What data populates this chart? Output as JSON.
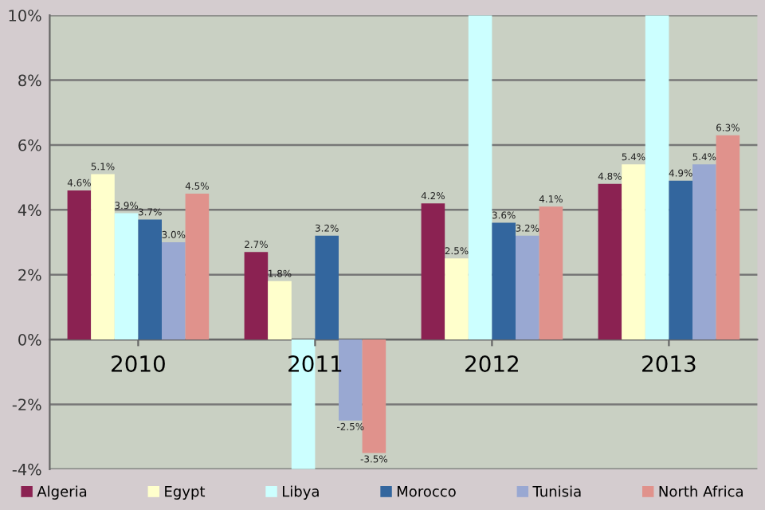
{
  "chart_data": {
    "type": "bar",
    "categories": [
      "2010",
      "2011",
      "2012",
      "2013"
    ],
    "series": [
      {
        "name": "Algeria",
        "color": "#8b2252",
        "values": [
          4.6,
          2.7,
          4.2,
          4.8
        ],
        "value_labels": [
          "4.6%",
          "2.7%",
          "4.2%",
          "4.8%"
        ]
      },
      {
        "name": "Egypt",
        "color": "#ffffcc",
        "values": [
          5.1,
          1.8,
          2.5,
          5.4
        ],
        "value_labels": [
          "5.1%",
          "1.8%",
          "2.5%",
          "5.4%"
        ]
      },
      {
        "name": "Libya",
        "color": "#ccffff",
        "values": [
          3.9,
          -4,
          10,
          10
        ],
        "value_labels": [
          "3.9%",
          null,
          null,
          null
        ]
      },
      {
        "name": "Morocco",
        "color": "#33669e",
        "values": [
          3.7,
          3.2,
          3.6,
          4.9
        ],
        "value_labels": [
          "3.7%",
          "3.2%",
          "3.6%",
          "4.9%"
        ]
      },
      {
        "name": "Tunisia",
        "color": "#99a8d2",
        "values": [
          3.0,
          -2.5,
          3.2,
          5.4
        ],
        "value_labels": [
          "3.0%",
          "-2.5%",
          "3.2%",
          "5.4%"
        ]
      },
      {
        "name": "North Africa",
        "color": "#e0928c",
        "values": [
          4.5,
          -3.5,
          4.1,
          6.3
        ],
        "value_labels": [
          "4.5%",
          "-3.5%",
          "4.1%",
          "6.3%"
        ]
      }
    ],
    "ylim": [
      -4,
      10
    ],
    "yticks": [
      {
        "value": -4,
        "label": "-4%"
      },
      {
        "value": -2,
        "label": "-2%"
      },
      {
        "value": 0,
        "label": "0%"
      },
      {
        "value": 2,
        "label": "2%"
      },
      {
        "value": 4,
        "label": "4%"
      },
      {
        "value": 6,
        "label": "6%"
      },
      {
        "value": 8,
        "label": "8%"
      },
      {
        "value": 10,
        "label": "10%"
      }
    ],
    "grid": "y",
    "legend": "bottom"
  }
}
